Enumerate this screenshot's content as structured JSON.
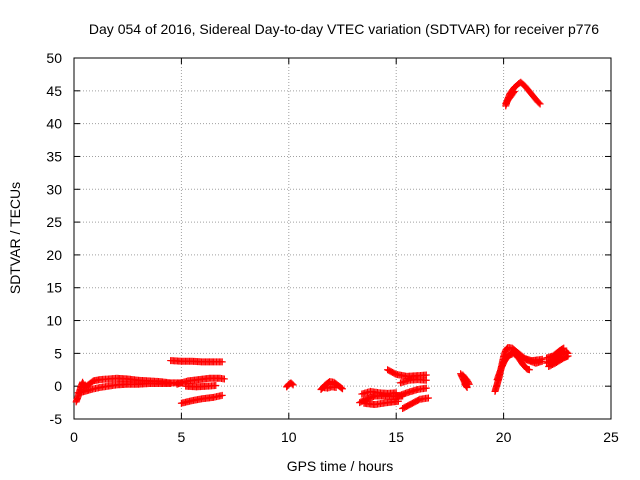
{
  "chart_data": {
    "type": "scatter",
    "title": "Day 054 of 2016, Sidereal Day-to-day VTEC variation (SDTVAR) for receiver p776",
    "xlabel": "GPS time / hours",
    "ylabel": "SDTVAR / TECUs",
    "xlim": [
      0,
      25
    ],
    "ylim": [
      -5,
      50
    ],
    "xticks": [
      "0",
      "5",
      "10",
      "15",
      "20",
      "25"
    ],
    "yticks": [
      "-5",
      "0",
      "5",
      "10",
      "15",
      "20",
      "25",
      "30",
      "35",
      "40",
      "45",
      "50"
    ],
    "grid": true,
    "marker": "plus",
    "color": "#ff0000",
    "series": [
      {
        "segments": [
          [
            [
              0.1,
              -2.4
            ],
            [
              0.2,
              -1.5
            ],
            [
              0.3,
              -0.3
            ],
            [
              0.4,
              0.6
            ],
            [
              0.5,
              -0.2
            ],
            [
              0.7,
              0.3
            ],
            [
              0.9,
              0.8
            ],
            [
              1.2,
              1.0
            ],
            [
              1.6,
              1.1
            ],
            [
              2.0,
              1.2
            ],
            [
              2.5,
              1.1
            ],
            [
              3.0,
              0.9
            ],
            [
              3.5,
              0.8
            ],
            [
              4.0,
              0.7
            ],
            [
              4.5,
              0.5
            ],
            [
              5.0,
              0.5
            ]
          ],
          [
            [
              0.2,
              -1.0
            ],
            [
              0.5,
              -0.8
            ],
            [
              0.8,
              -0.5
            ],
            [
              1.2,
              -0.2
            ],
            [
              1.6,
              0.0
            ],
            [
              2.0,
              0.2
            ],
            [
              2.5,
              0.3
            ],
            [
              3.0,
              0.3
            ],
            [
              3.5,
              0.4
            ],
            [
              4.0,
              0.4
            ],
            [
              4.5,
              0.4
            ]
          ],
          [
            [
              4.5,
              3.9
            ],
            [
              5.0,
              3.8
            ],
            [
              5.5,
              3.8
            ],
            [
              6.0,
              3.7
            ],
            [
              6.5,
              3.7
            ],
            [
              6.9,
              3.7
            ]
          ],
          [
            [
              4.8,
              0.3
            ],
            [
              5.3,
              0.8
            ],
            [
              5.8,
              1.0
            ],
            [
              6.3,
              1.2
            ],
            [
              6.8,
              1.2
            ],
            [
              7.0,
              1.1
            ]
          ],
          [
            [
              5.2,
              0.0
            ],
            [
              5.7,
              -0.1
            ],
            [
              6.2,
              0.0
            ],
            [
              6.6,
              0.1
            ]
          ],
          [
            [
              5.0,
              -2.6
            ],
            [
              5.5,
              -2.2
            ],
            [
              6.0,
              -1.9
            ],
            [
              6.5,
              -1.7
            ],
            [
              6.9,
              -1.4
            ]
          ]
        ]
      },
      {
        "segments": [
          [
            [
              9.9,
              -0.1
            ],
            [
              10.0,
              0.3
            ],
            [
              10.1,
              0.5
            ],
            [
              10.2,
              0.2
            ]
          ]
        ]
      },
      {
        "segments": [
          [
            [
              11.5,
              -0.5
            ],
            [
              11.7,
              0.2
            ],
            [
              11.9,
              0.7
            ],
            [
              12.1,
              0.6
            ],
            [
              12.3,
              0.1
            ],
            [
              12.5,
              -0.4
            ]
          ],
          [
            [
              11.6,
              -0.2
            ],
            [
              11.8,
              -0.3
            ],
            [
              12.0,
              -0.1
            ],
            [
              12.2,
              -0.2
            ]
          ]
        ]
      },
      {
        "segments": [
          [
            [
              13.3,
              -2.5
            ],
            [
              13.6,
              -2.0
            ],
            [
              14.0,
              -1.5
            ],
            [
              14.5,
              -1.5
            ],
            [
              15.0,
              -1.6
            ],
            [
              15.3,
              -1.5
            ]
          ],
          [
            [
              13.4,
              -1.2
            ],
            [
              13.8,
              -0.8
            ],
            [
              14.2,
              -1.0
            ],
            [
              14.6,
              -1.1
            ],
            [
              15.0,
              -1.0
            ]
          ],
          [
            [
              13.5,
              -2.6
            ],
            [
              14.0,
              -2.8
            ],
            [
              14.6,
              -2.5
            ],
            [
              15.1,
              -2.3
            ]
          ],
          [
            [
              14.6,
              2.5
            ],
            [
              15.0,
              1.8
            ],
            [
              15.5,
              1.5
            ],
            [
              16.0,
              1.6
            ],
            [
              16.4,
              1.7
            ]
          ],
          [
            [
              15.2,
              0.5
            ],
            [
              15.6,
              0.9
            ],
            [
              16.0,
              1.0
            ],
            [
              16.4,
              0.9
            ]
          ],
          [
            [
              15.0,
              -1.6
            ],
            [
              15.5,
              -1.0
            ],
            [
              16.0,
              -0.5
            ],
            [
              16.4,
              -0.3
            ]
          ],
          [
            [
              15.3,
              -3.4
            ],
            [
              15.7,
              -2.7
            ],
            [
              16.1,
              -2.0
            ],
            [
              16.5,
              -1.8
            ]
          ]
        ]
      },
      {
        "segments": [
          [
            [
              18.0,
              1.9
            ],
            [
              18.1,
              1.2
            ],
            [
              18.2,
              0.5
            ],
            [
              18.3,
              -0.2
            ],
            [
              18.2,
              0.3
            ]
          ],
          [
            [
              18.1,
              1.7
            ],
            [
              18.3,
              0.9
            ],
            [
              18.4,
              0.3
            ]
          ]
        ]
      },
      {
        "segments": [
          [
            [
              19.6,
              -0.8
            ],
            [
              19.7,
              0.3
            ],
            [
              19.8,
              1.4
            ],
            [
              19.9,
              3.0
            ],
            [
              20.0,
              4.5
            ],
            [
              20.1,
              5.5
            ],
            [
              20.2,
              5.9
            ],
            [
              20.4,
              5.8
            ],
            [
              20.7,
              5.0
            ],
            [
              21.0,
              4.2
            ],
            [
              21.3,
              3.9
            ],
            [
              21.6,
              4.0
            ],
            [
              21.8,
              4.1
            ]
          ],
          [
            [
              19.7,
              1.0
            ],
            [
              19.9,
              2.8
            ],
            [
              20.1,
              4.3
            ],
            [
              20.4,
              5.2
            ],
            [
              20.7,
              4.3
            ],
            [
              20.9,
              3.3
            ],
            [
              21.1,
              2.6
            ],
            [
              21.2,
              2.5
            ]
          ],
          [
            [
              20.0,
              3.6
            ],
            [
              20.2,
              4.6
            ],
            [
              20.4,
              4.9
            ]
          ],
          [
            [
              21.0,
              4.1
            ],
            [
              21.5,
              3.5
            ],
            [
              21.8,
              3.8
            ]
          ],
          [
            [
              22.0,
              3.5
            ],
            [
              22.3,
              4.0
            ],
            [
              22.6,
              4.8
            ],
            [
              22.9,
              5.3
            ],
            [
              23.0,
              5.0
            ]
          ],
          [
            [
              22.1,
              3.0
            ],
            [
              22.4,
              3.5
            ],
            [
              22.8,
              4.3
            ],
            [
              23.0,
              4.6
            ]
          ],
          [
            [
              22.0,
              4.3
            ],
            [
              22.3,
              4.6
            ],
            [
              22.6,
              5.4
            ],
            [
              22.8,
              5.8
            ]
          ]
        ]
      },
      {
        "segments": [
          [
            [
              20.1,
              42.7
            ],
            [
              20.2,
              43.8
            ],
            [
              20.3,
              44.6
            ],
            [
              20.5,
              45.5
            ],
            [
              20.7,
              46.1
            ],
            [
              20.8,
              46.3
            ],
            [
              21.0,
              45.7
            ],
            [
              21.3,
              44.5
            ],
            [
              21.6,
              43.3
            ],
            [
              21.7,
              43.0
            ]
          ],
          [
            [
              20.1,
              43.1
            ],
            [
              20.3,
              44.0
            ],
            [
              20.5,
              44.9
            ]
          ]
        ]
      }
    ]
  }
}
